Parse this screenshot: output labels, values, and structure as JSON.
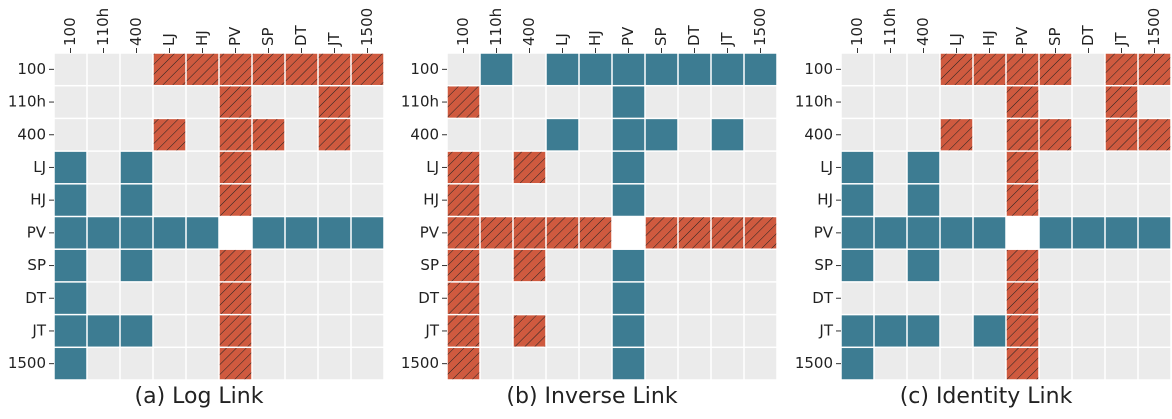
{
  "chart_data": [
    {
      "type": "matrix",
      "title": "(a) Log Link",
      "categories": [
        "100",
        "110h",
        "400",
        "LJ",
        "HJ",
        "PV",
        "SP",
        "DT",
        "JT",
        "1500"
      ],
      "positive_color": "#3d7c92",
      "negative_color": "#cf5a3f",
      "empty_color": "#ebebeb",
      "negative_hatched": true,
      "cells": [
        [
          0,
          0,
          0,
          -1,
          -1,
          -1,
          -1,
          -1,
          -1,
          -1
        ],
        [
          0,
          0,
          0,
          0,
          0,
          -1,
          0,
          0,
          -1,
          0
        ],
        [
          0,
          0,
          0,
          -1,
          0,
          -1,
          -1,
          0,
          -1,
          0
        ],
        [
          1,
          0,
          1,
          0,
          0,
          -1,
          0,
          0,
          0,
          0
        ],
        [
          1,
          0,
          1,
          0,
          0,
          -1,
          0,
          0,
          0,
          0
        ],
        [
          1,
          1,
          1,
          1,
          1,
          null,
          1,
          1,
          1,
          1
        ],
        [
          1,
          0,
          1,
          0,
          0,
          -1,
          0,
          0,
          0,
          0
        ],
        [
          1,
          0,
          0,
          0,
          0,
          -1,
          0,
          0,
          0,
          0
        ],
        [
          1,
          1,
          1,
          0,
          0,
          -1,
          0,
          0,
          0,
          0
        ],
        [
          1,
          0,
          0,
          0,
          0,
          -1,
          0,
          0,
          0,
          0
        ]
      ]
    },
    {
      "type": "matrix",
      "title": "(b) Inverse Link",
      "categories": [
        "100",
        "110h",
        "400",
        "LJ",
        "HJ",
        "PV",
        "SP",
        "DT",
        "JT",
        "1500"
      ],
      "positive_color": "#3d7c92",
      "negative_color": "#cf5a3f",
      "empty_color": "#ebebeb",
      "negative_hatched": true,
      "cells": [
        [
          0,
          1,
          0,
          1,
          1,
          1,
          1,
          1,
          1,
          1
        ],
        [
          -1,
          0,
          0,
          0,
          0,
          1,
          0,
          0,
          0,
          0
        ],
        [
          0,
          0,
          0,
          1,
          0,
          1,
          1,
          0,
          1,
          0
        ],
        [
          -1,
          0,
          -1,
          0,
          0,
          1,
          0,
          0,
          0,
          0
        ],
        [
          -1,
          0,
          0,
          0,
          0,
          1,
          0,
          0,
          0,
          0
        ],
        [
          -1,
          -1,
          -1,
          -1,
          -1,
          null,
          -1,
          -1,
          -1,
          -1
        ],
        [
          -1,
          0,
          -1,
          0,
          0,
          1,
          0,
          0,
          0,
          0
        ],
        [
          -1,
          0,
          0,
          0,
          0,
          1,
          0,
          0,
          0,
          0
        ],
        [
          -1,
          0,
          -1,
          0,
          0,
          1,
          0,
          0,
          0,
          0
        ],
        [
          -1,
          0,
          0,
          0,
          0,
          1,
          0,
          0,
          0,
          0
        ]
      ]
    },
    {
      "type": "matrix",
      "title": "(c) Identity Link",
      "categories": [
        "100",
        "110h",
        "400",
        "LJ",
        "HJ",
        "PV",
        "SP",
        "DT",
        "JT",
        "1500"
      ],
      "positive_color": "#3d7c92",
      "negative_color": "#cf5a3f",
      "empty_color": "#ebebeb",
      "negative_hatched": true,
      "cells": [
        [
          0,
          0,
          0,
          -1,
          -1,
          -1,
          -1,
          0,
          -1,
          -1
        ],
        [
          0,
          0,
          0,
          0,
          0,
          -1,
          0,
          0,
          -1,
          0
        ],
        [
          0,
          0,
          0,
          -1,
          0,
          -1,
          -1,
          0,
          -1,
          -1
        ],
        [
          1,
          0,
          1,
          0,
          0,
          -1,
          0,
          0,
          0,
          0
        ],
        [
          1,
          0,
          1,
          0,
          0,
          -1,
          0,
          0,
          0,
          0
        ],
        [
          1,
          1,
          1,
          1,
          1,
          null,
          1,
          1,
          1,
          1
        ],
        [
          1,
          0,
          1,
          0,
          0,
          -1,
          0,
          0,
          0,
          0
        ],
        [
          0,
          0,
          0,
          0,
          0,
          -1,
          0,
          0,
          0,
          0
        ],
        [
          1,
          1,
          1,
          0,
          1,
          -1,
          0,
          0,
          0,
          0
        ],
        [
          1,
          0,
          0,
          0,
          0,
          -1,
          0,
          0,
          0,
          0
        ]
      ]
    }
  ]
}
